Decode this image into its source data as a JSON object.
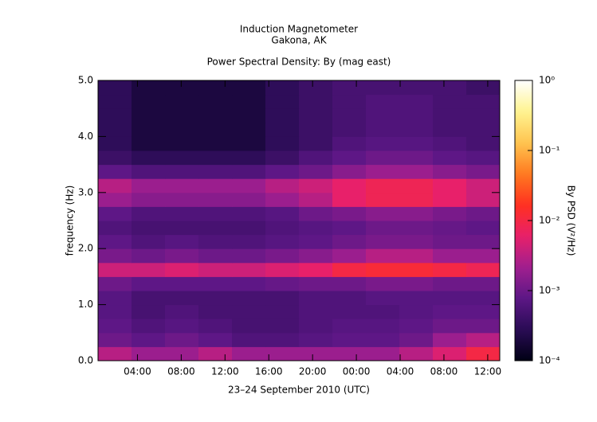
{
  "chart_data": {
    "type": "spectrogram",
    "title": "Induction Magnetometer",
    "subtitle": "Gakona, AK",
    "plot_title": "Power Spectral Density: By (mag east)",
    "x_label": "23–24 September 2010 (UTC)",
    "y_label": "frequency (Hz)",
    "colorbar_label": "By PSD (V²/Hz)",
    "xlim": [
      0.4,
      37.1
    ],
    "xticks": [
      {
        "value": 4,
        "label": "04:00"
      },
      {
        "value": 8,
        "label": "08:00"
      },
      {
        "value": 12,
        "label": "12:00"
      },
      {
        "value": 16,
        "label": "16:00"
      },
      {
        "value": 20,
        "label": "20:00"
      },
      {
        "value": 24,
        "label": "00:00"
      },
      {
        "value": 28,
        "label": "04:00"
      },
      {
        "value": 32,
        "label": "08:00"
      },
      {
        "value": 36,
        "label": "12:00"
      }
    ],
    "ylim": [
      0,
      5
    ],
    "yticks": [
      {
        "value": 0,
        "label": "0.0"
      },
      {
        "value": 1,
        "label": "1.0"
      },
      {
        "value": 2,
        "label": "2.0"
      },
      {
        "value": 3,
        "label": "3.0"
      },
      {
        "value": 4,
        "label": "4.0"
      },
      {
        "value": 5,
        "label": "5.0"
      }
    ],
    "colorbar_log": true,
    "colorbar_lim": [
      0.0001,
      1
    ],
    "colorbar_ticks": [
      {
        "value": 0.0001,
        "label": "10⁻⁴"
      },
      {
        "value": 0.001,
        "label": "10⁻³"
      },
      {
        "value": 0.01,
        "label": "10⁻²"
      },
      {
        "value": 0.1,
        "label": "10⁻¹"
      },
      {
        "value": 1,
        "label": "10⁰"
      }
    ],
    "colormap": [
      "#000014",
      "#2a0c55",
      "#5c1786",
      "#a01f8f",
      "#e8206a",
      "#ff3020",
      "#ff7a20",
      "#ffc450",
      "#fff490",
      "#ffffff"
    ],
    "z": [
      [
        0.003,
        0.002,
        0.002,
        0.003,
        0.002,
        0.002,
        0.002,
        0.002,
        0.002,
        0.003,
        0.005,
        0.01
      ],
      [
        0.001,
        0.0008,
        0.001,
        0.0008,
        0.0006,
        0.0006,
        0.0007,
        0.0008,
        0.0008,
        0.001,
        0.002,
        0.003
      ],
      [
        0.0008,
        0.0006,
        0.0007,
        0.0006,
        0.0005,
        0.0005,
        0.0006,
        0.0007,
        0.0007,
        0.0008,
        0.001,
        0.001
      ],
      [
        0.0007,
        0.0005,
        0.0006,
        0.0005,
        0.0005,
        0.0005,
        0.0006,
        0.0006,
        0.0006,
        0.0007,
        0.0008,
        0.0008
      ],
      [
        0.0007,
        0.0005,
        0.0005,
        0.0005,
        0.0005,
        0.0005,
        0.0006,
        0.0006,
        0.0007,
        0.0007,
        0.0007,
        0.0007
      ],
      [
        0.001,
        0.0008,
        0.0008,
        0.0008,
        0.0008,
        0.0009,
        0.001,
        0.001,
        0.0012,
        0.0012,
        0.001,
        0.001
      ],
      [
        0.004,
        0.004,
        0.005,
        0.004,
        0.004,
        0.005,
        0.006,
        0.01,
        0.012,
        0.012,
        0.01,
        0.008
      ],
      [
        0.0012,
        0.001,
        0.0012,
        0.001,
        0.001,
        0.0012,
        0.0015,
        0.002,
        0.003,
        0.003,
        0.002,
        0.002
      ],
      [
        0.0008,
        0.0006,
        0.0007,
        0.0006,
        0.0006,
        0.0007,
        0.0008,
        0.001,
        0.0012,
        0.0012,
        0.001,
        0.001
      ],
      [
        0.0006,
        0.0005,
        0.0005,
        0.0005,
        0.0005,
        0.0006,
        0.0007,
        0.0008,
        0.001,
        0.001,
        0.0009,
        0.0008
      ],
      [
        0.0008,
        0.0006,
        0.0006,
        0.0006,
        0.0006,
        0.0007,
        0.001,
        0.0012,
        0.0015,
        0.0015,
        0.0012,
        0.001
      ],
      [
        0.002,
        0.0015,
        0.0015,
        0.0015,
        0.0015,
        0.002,
        0.003,
        0.006,
        0.008,
        0.008,
        0.006,
        0.004
      ],
      [
        0.003,
        0.002,
        0.002,
        0.002,
        0.002,
        0.003,
        0.004,
        0.006,
        0.008,
        0.008,
        0.006,
        0.004
      ],
      [
        0.0008,
        0.0006,
        0.0006,
        0.0006,
        0.0006,
        0.0008,
        0.001,
        0.0015,
        0.002,
        0.002,
        0.0015,
        0.0012
      ],
      [
        0.0004,
        0.0003,
        0.0003,
        0.0003,
        0.0003,
        0.0004,
        0.0006,
        0.0008,
        0.001,
        0.001,
        0.0008,
        0.0007
      ],
      [
        0.0003,
        0.0002,
        0.0002,
        0.0002,
        0.0002,
        0.0003,
        0.0004,
        0.0006,
        0.0007,
        0.0007,
        0.0006,
        0.0005
      ],
      [
        0.0003,
        0.0002,
        0.0002,
        0.0002,
        0.0002,
        0.0003,
        0.0004,
        0.0005,
        0.0006,
        0.0006,
        0.0005,
        0.0005
      ],
      [
        0.0003,
        0.0002,
        0.0002,
        0.0002,
        0.0002,
        0.0003,
        0.0004,
        0.0005,
        0.0006,
        0.0006,
        0.0005,
        0.0005
      ],
      [
        0.0003,
        0.0002,
        0.0002,
        0.0002,
        0.0002,
        0.0003,
        0.0004,
        0.0005,
        0.0006,
        0.0006,
        0.0005,
        0.0005
      ],
      [
        0.0003,
        0.0002,
        0.0002,
        0.0002,
        0.0002,
        0.0003,
        0.0004,
        0.0005,
        0.0005,
        0.0005,
        0.0005,
        0.0004
      ]
    ]
  }
}
